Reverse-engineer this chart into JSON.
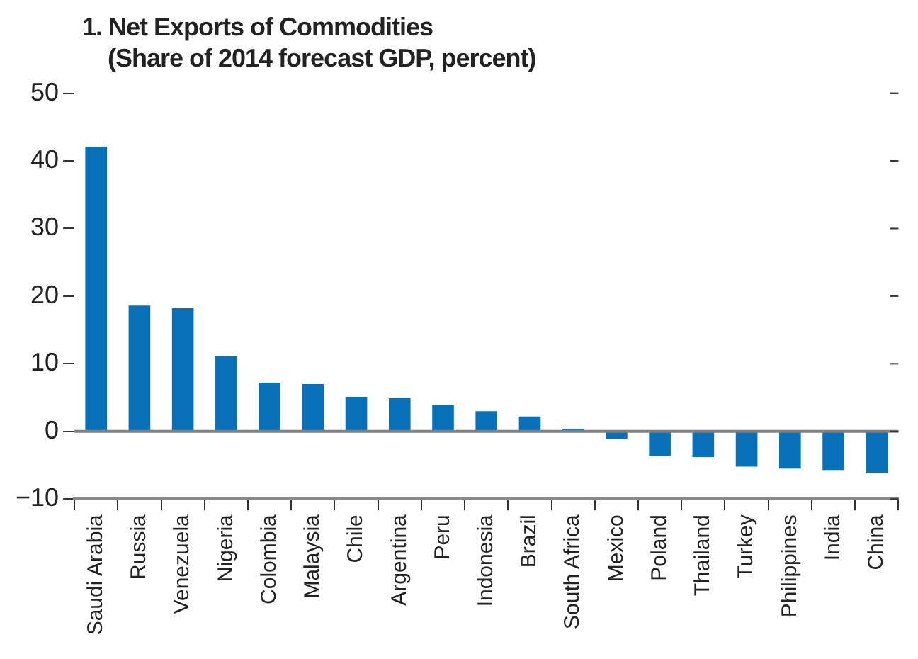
{
  "chart_data": {
    "type": "bar",
    "title": "1. Net Exports of Commodities",
    "subtitle": "(Share of 2014 forecast GDP, percent)",
    "categories": [
      "Saudi Arabia",
      "Russia",
      "Venezuela",
      "Nigeria",
      "Colombia",
      "Malaysia",
      "Chile",
      "Argentina",
      "Peru",
      "Indonesia",
      "Brazil",
      "South Africa",
      "Mexico",
      "Poland",
      "Thailand",
      "Turkey",
      "Philippines",
      "India",
      "China"
    ],
    "values": [
      42.1,
      18.6,
      18.2,
      11.1,
      7.2,
      7.0,
      5.1,
      4.9,
      3.9,
      3.0,
      2.2,
      0.4,
      -1.1,
      -3.6,
      -3.8,
      -5.2,
      -5.5,
      -5.7,
      -6.2
    ],
    "color": "#0770b9",
    "ylim": [
      -10,
      50
    ],
    "yticks": [
      -10,
      0,
      10,
      20,
      30,
      40,
      50
    ],
    "ref_lines": [
      {
        "axis": "y",
        "value": 0,
        "color": "#808080"
      }
    ],
    "grid": false,
    "legend": false
  }
}
